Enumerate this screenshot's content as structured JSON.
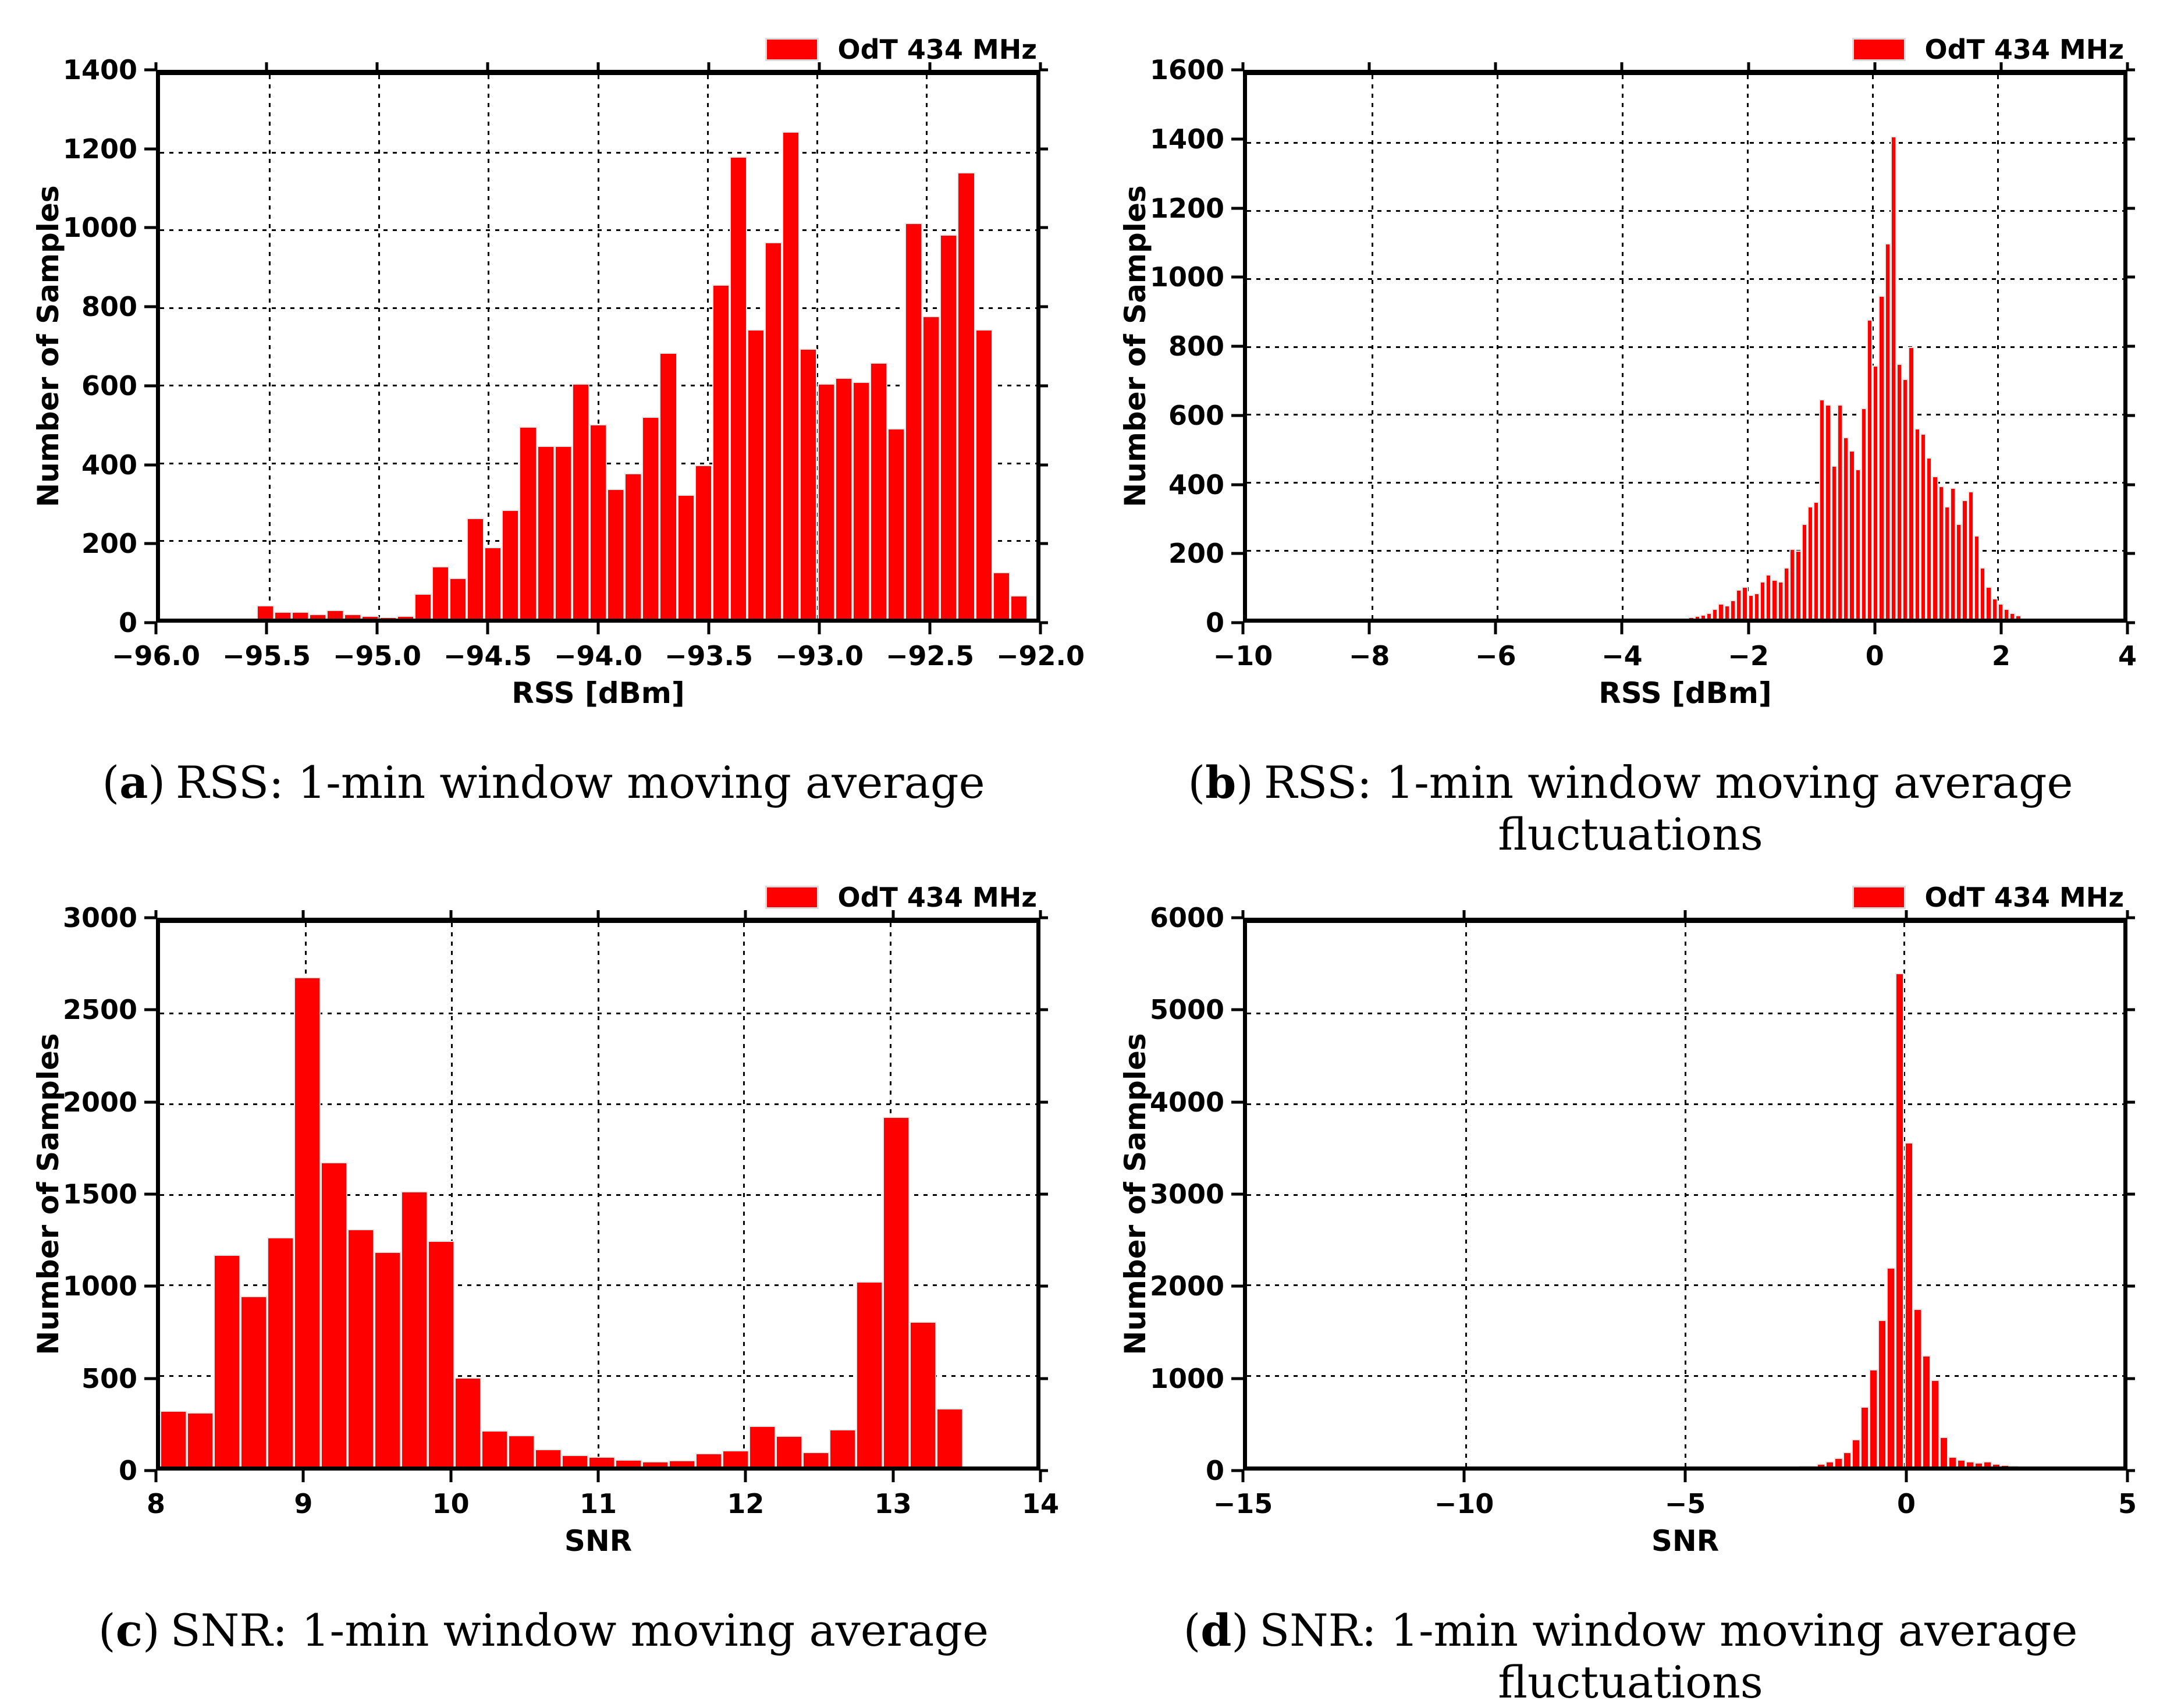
{
  "legend": {
    "label": "OdT 434 MHz",
    "swatch_color": "#ff0000"
  },
  "styles": {
    "bar_color": "#ff0000",
    "bar_edge_color": "#e9e9e9",
    "grid_color": "#000000",
    "text_color": "#000000"
  },
  "chart_data": [
    {
      "type": "bar",
      "caption": {
        "pre": "(",
        "letter": "a",
        "post": ")",
        "text": "RSS: 1-min window moving average"
      },
      "xlabel": "RSS [dBm]",
      "ylabel": "Number of Samples",
      "legend_entry": "OdT 434 MHz",
      "legend_position": "upper-right-outside",
      "grid": true,
      "xlim": [
        -96.0,
        -92.0
      ],
      "ylim": [
        0,
        1400
      ],
      "xtick_values": [
        -96.0,
        -95.5,
        -95.0,
        -94.5,
        -94.0,
        -93.5,
        -93.0,
        -92.5,
        -92.0
      ],
      "xtick_labels": [
        "−96.0",
        "−95.5",
        "−95.0",
        "−94.5",
        "−94.0",
        "−93.5",
        "−93.0",
        "−92.5",
        "−92.0"
      ],
      "ytick_values": [
        0,
        200,
        400,
        600,
        800,
        1000,
        1200,
        1400
      ],
      "ytick_labels": [
        "0",
        "200",
        "400",
        "600",
        "800",
        "1000",
        "1200",
        "1400"
      ],
      "bin_start": -95.56,
      "bin_width": 0.08,
      "values": [
        35,
        18,
        18,
        12,
        22,
        12,
        8,
        4,
        8,
        65,
        135,
        105,
        260,
        185,
        280,
        495,
        445,
        445,
        605,
        500,
        335,
        375,
        520,
        685,
        320,
        395,
        860,
        1190,
        745,
        970,
        1255,
        695,
        605,
        620,
        610,
        660,
        490,
        1020,
        780,
        990,
        1150,
        745,
        120,
        60
      ]
    },
    {
      "type": "bar",
      "caption": {
        "pre": "(",
        "letter": "b",
        "post": ")",
        "text": "RSS: 1-min window moving average fluctuations"
      },
      "xlabel": "RSS [dBm]",
      "ylabel": "Number of Samples",
      "legend_entry": "OdT 434 MHz",
      "legend_position": "upper-right-outside",
      "grid": true,
      "xlim": [
        -10,
        4
      ],
      "ylim": [
        0,
        1600
      ],
      "xtick_values": [
        -10,
        -8,
        -6,
        -4,
        -2,
        0,
        2,
        4
      ],
      "xtick_labels": [
        "−10",
        "−8",
        "−6",
        "−4",
        "−2",
        "0",
        "2",
        "4"
      ],
      "ytick_values": [
        0,
        200,
        400,
        600,
        800,
        1000,
        1200,
        1400,
        1600
      ],
      "ytick_labels": [
        "0",
        "200",
        "400",
        "600",
        "800",
        "1000",
        "1200",
        "1400",
        "1600"
      ],
      "bin_start": -2.95,
      "bin_width": 0.095,
      "values": [
        5,
        8,
        12,
        18,
        30,
        45,
        40,
        55,
        85,
        95,
        70,
        75,
        110,
        130,
        115,
        110,
        150,
        205,
        200,
        280,
        330,
        345,
        645,
        630,
        450,
        630,
        535,
        495,
        440,
        620,
        880,
        745,
        950,
        1105,
        1420,
        750,
        705,
        800,
        560,
        545,
        475,
        420,
        390,
        330,
        385,
        280,
        350,
        375,
        245,
        150,
        95,
        60,
        45,
        30,
        18,
        10
      ]
    },
    {
      "type": "bar",
      "caption": {
        "pre": "(",
        "letter": "c",
        "post": ")",
        "text": "SNR: 1-min window moving average"
      },
      "xlabel": "SNR",
      "ylabel": "Number of Samples",
      "legend_entry": "OdT 434 MHz",
      "legend_position": "upper-right-outside",
      "grid": true,
      "xlim": [
        8,
        14
      ],
      "ylim": [
        0,
        3000
      ],
      "xtick_values": [
        8,
        9,
        10,
        11,
        12,
        13,
        14
      ],
      "xtick_labels": [
        "8",
        "9",
        "10",
        "11",
        "12",
        "13",
        "14"
      ],
      "ytick_values": [
        0,
        500,
        1000,
        1500,
        2000,
        2500,
        3000
      ],
      "ytick_labels": [
        "0",
        "500",
        "1000",
        "1500",
        "2000",
        "2500",
        "3000"
      ],
      "bin_start": 8.0,
      "bin_width": 0.1833,
      "values": [
        310,
        300,
        1170,
        940,
        1265,
        2700,
        1680,
        1310,
        1185,
        1520,
        1245,
        490,
        200,
        175,
        95,
        65,
        55,
        40,
        30,
        35,
        75,
        90,
        225,
        170,
        80,
        205,
        1020,
        1930,
        800,
        320
      ]
    },
    {
      "type": "bar",
      "caption": {
        "pre": "(",
        "letter": "d",
        "post": ")",
        "text": "SNR: 1-min window moving average fluctuations"
      },
      "xlabel": "SNR",
      "ylabel": "Number of Samples",
      "legend_entry": "OdT 434 MHz",
      "legend_position": "upper-right-outside",
      "grid": true,
      "xlim": [
        -15,
        5
      ],
      "ylim": [
        0,
        6000
      ],
      "xtick_values": [
        -15,
        -10,
        -5,
        0,
        5
      ],
      "xtick_labels": [
        "−15",
        "−10",
        "−5",
        "0",
        "5"
      ],
      "ytick_values": [
        0,
        1000,
        2000,
        3000,
        4000,
        5000,
        6000
      ],
      "ytick_labels": [
        "0",
        "1000",
        "2000",
        "3000",
        "4000",
        "5000",
        "6000"
      ],
      "bin_start": -2.4,
      "bin_width": 0.2,
      "values": [
        10,
        15,
        30,
        55,
        95,
        160,
        300,
        660,
        1070,
        1620,
        2200,
        5450,
        3580,
        1740,
        1230,
        960,
        330,
        110,
        80,
        60,
        45,
        55,
        30,
        18,
        10
      ]
    }
  ]
}
